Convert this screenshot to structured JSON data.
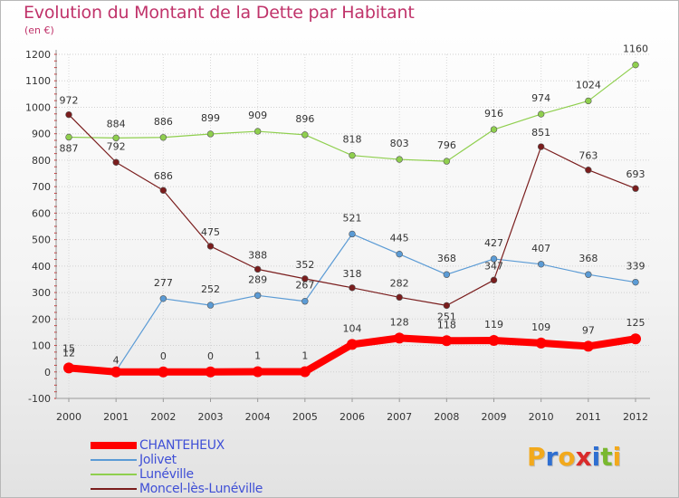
{
  "header": {
    "title": "Evolution du Montant de la Dette par Habitant",
    "subtitle": "(en €)"
  },
  "brand": {
    "letters": [
      "P",
      "r",
      "o",
      "x",
      "i",
      "t",
      "i"
    ],
    "colors": [
      "#f2a91c",
      "#2f6fd1",
      "#f2a91c",
      "#d92b2b",
      "#2f6fd1",
      "#7ab82f",
      "#f2a91c"
    ]
  },
  "chart_data": {
    "type": "line",
    "title": "Evolution du Montant de la Dette par Habitant",
    "subtitle": "(en €)",
    "xlabel": "",
    "ylabel": "",
    "x": [
      "2000",
      "2001",
      "2002",
      "2003",
      "2004",
      "2005",
      "2006",
      "2007",
      "2008",
      "2009",
      "2010",
      "2011",
      "2012"
    ],
    "ylim": [
      -100,
      1200
    ],
    "yticks": [
      -100,
      0,
      100,
      200,
      300,
      400,
      500,
      600,
      700,
      800,
      900,
      1000,
      1100,
      1200
    ],
    "ytick_labels": [
      "-100",
      "0",
      "100",
      "200",
      "300",
      "400",
      "500",
      "600",
      "700",
      "800",
      "900",
      "1000",
      "1100",
      "1200"
    ],
    "grid": true,
    "legend_position": "bottom-left",
    "series": [
      {
        "name": "Jolivet",
        "color": "#5b9bd5",
        "values": [
          12,
          4,
          277,
          252,
          289,
          267,
          521,
          445,
          368,
          427,
          407,
          368,
          339
        ],
        "labels": [
          "12",
          "4",
          "277",
          "252",
          "289",
          "267",
          "521",
          "445",
          "368",
          "427",
          "407",
          "368",
          "339"
        ]
      },
      {
        "name": "Lunéville",
        "color": "#8fcf4e",
        "values": [
          887,
          884,
          886,
          899,
          909,
          896,
          818,
          803,
          796,
          916,
          974,
          1024,
          1160
        ],
        "labels": [
          "887",
          "884",
          "886",
          "899",
          "909",
          "896",
          "818",
          "803",
          "796",
          "916",
          "974",
          "1024",
          "1160"
        ]
      },
      {
        "name": "Moncel-lès-Lunéville",
        "color": "#7a1d1d",
        "values": [
          972,
          792,
          686,
          475,
          388,
          352,
          318,
          282,
          251,
          347,
          851,
          763,
          693
        ],
        "labels": [
          "972",
          "792",
          "686",
          "475",
          "388",
          "352",
          "318",
          "282",
          "251",
          "347",
          "851",
          "763",
          "693"
        ]
      },
      {
        "name": "CHANTEHEUX",
        "color": "#ff0000",
        "values": [
          15,
          0,
          0,
          0,
          1,
          1,
          104,
          128,
          118,
          119,
          109,
          97,
          125
        ],
        "labels": [
          "15",
          "",
          "0",
          "0",
          "1",
          "1",
          "104",
          "128",
          "118",
          "119",
          "109",
          "97",
          "125"
        ]
      }
    ],
    "legend": [
      "CHANTEHEUX",
      "Jolivet",
      "Lunéville",
      "Moncel-lès-Lunéville"
    ]
  }
}
